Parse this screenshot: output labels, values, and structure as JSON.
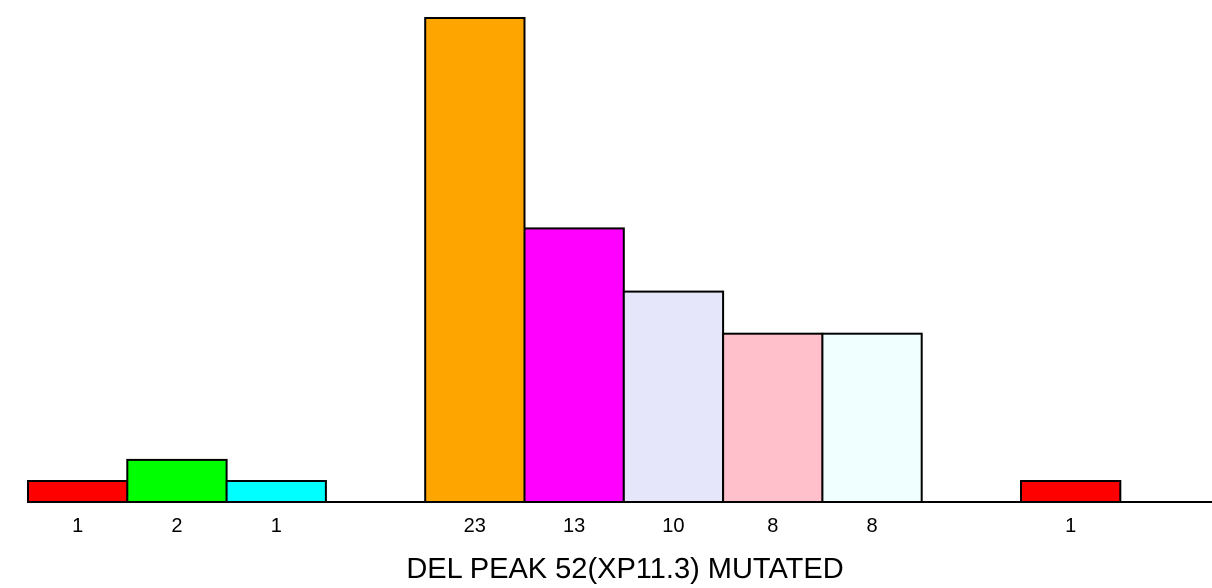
{
  "chart_data": {
    "type": "bar",
    "title": "",
    "xlabel": "DEL PEAK 52(XP11.3) MUTATED",
    "ylabel": "",
    "ylim": [
      0,
      23
    ],
    "grid": false,
    "legend": "none",
    "slots": [
      {
        "value": 1,
        "label": "1",
        "color": "#ff0000"
      },
      {
        "value": 2,
        "label": "2",
        "color": "#00ff00"
      },
      {
        "value": 1,
        "label": "1",
        "color": "#00ffff"
      },
      null,
      {
        "value": 23,
        "label": "23",
        "color": "#ffa500"
      },
      {
        "value": 13,
        "label": "13",
        "color": "#ff00ff"
      },
      {
        "value": 10,
        "label": "10",
        "color": "#e6e6fa"
      },
      {
        "value": 8,
        "label": "8",
        "color": "#ffc0cb"
      },
      {
        "value": 8,
        "label": "8",
        "color": "#f0ffff"
      },
      null,
      {
        "value": 1,
        "label": "1",
        "color": "#ff0000"
      }
    ]
  }
}
